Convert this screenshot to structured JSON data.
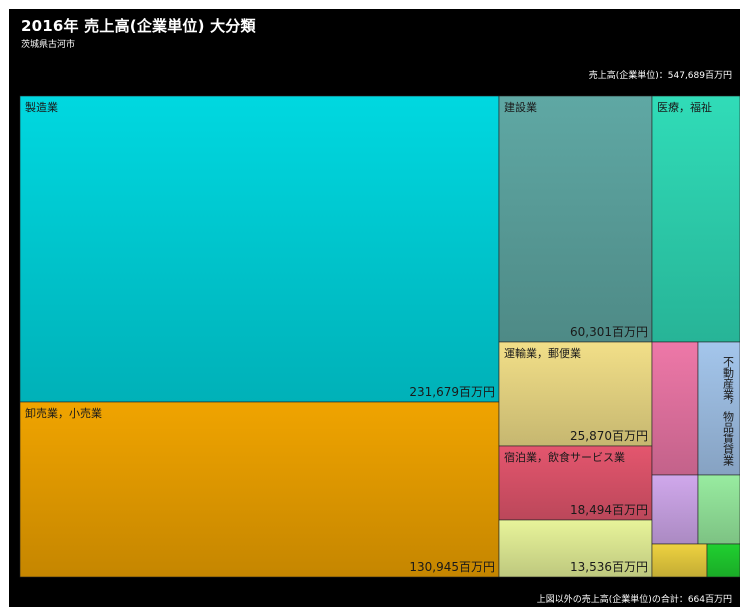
{
  "header": {
    "title": "2016年 売上高(企業単位) 大分類",
    "subtitle": "茨城県古河市",
    "total": "売上高(企業単位)：547,689百万円"
  },
  "footer": {
    "note": "上図以外の売上高(企業単位)の合計：664百万円"
  },
  "chart_data": {
    "type": "treemap",
    "title": "2016年 売上高(企業単位) 大分類",
    "subtitle": "茨城県古河市",
    "unit": "百万円",
    "total": 547689,
    "other_total": 664,
    "items": [
      {
        "name": "製造業",
        "value": 231679,
        "value_label": "231,679百万円",
        "color": "#00d8e0"
      },
      {
        "name": "卸売業，小売業",
        "value": 130945,
        "value_label": "130,945百万円",
        "color": "#f0a400"
      },
      {
        "name": "建設業",
        "value": 60301,
        "value_label": "60,301百万円",
        "color": "#5fa8a4"
      },
      {
        "name": "医療，福祉",
        "value": 35000,
        "value_label": "",
        "color": "#30dcb8"
      },
      {
        "name": "運輸業，郵便業",
        "value": 25870,
        "value_label": "25,870百万円",
        "color": "#f2df88"
      },
      {
        "name": "宿泊業，飲食サービス業",
        "value": 18494,
        "value_label": "18,494百万円",
        "color": "#e4566e"
      },
      {
        "name": "",
        "value": 13536,
        "value_label": "13,536百万円",
        "color": "#e8f49a"
      },
      {
        "name": "",
        "value": 7500,
        "value_label": "",
        "color": "#ee78a8"
      },
      {
        "name": "不動産業，物品賃貸業",
        "value": 5400,
        "value_label": "",
        "color": "#a4c6ec"
      },
      {
        "name": "",
        "value": 3600,
        "value_label": "",
        "color": "#d0a8ec"
      },
      {
        "name": "",
        "value": 3500,
        "value_label": "",
        "color": "#98eca0"
      },
      {
        "name": "",
        "value": 1700,
        "value_label": "",
        "color": "#eed240"
      },
      {
        "name": "",
        "value": 1100,
        "value_label": "",
        "color": "#20d030"
      }
    ]
  }
}
